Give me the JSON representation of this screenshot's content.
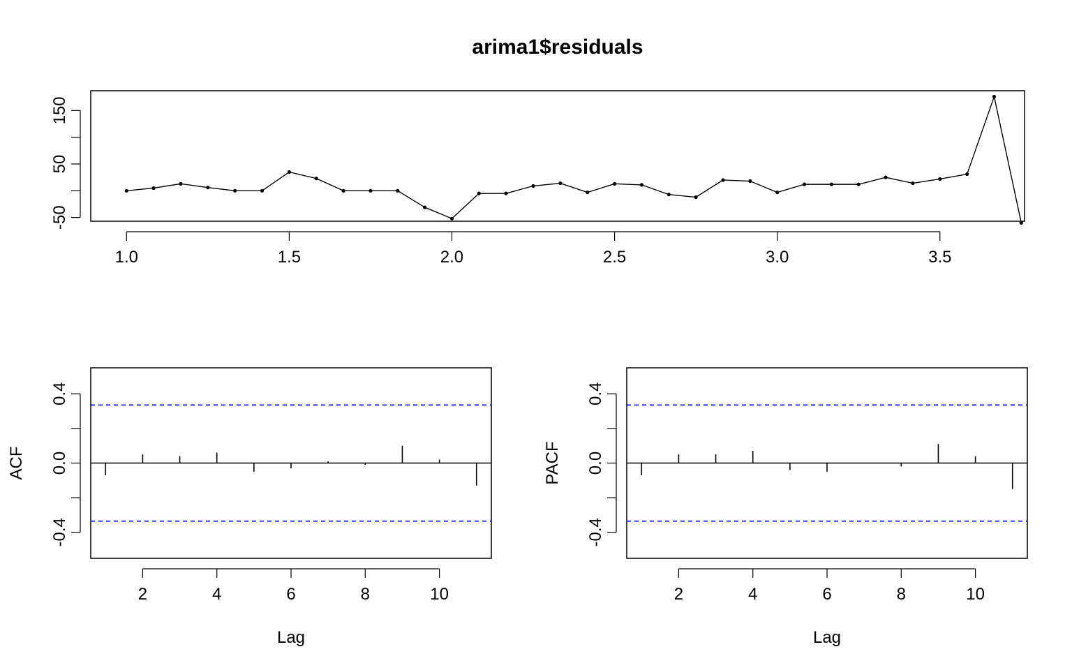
{
  "chart_data": [
    {
      "type": "line",
      "title": "arima1$residuals",
      "xlabel": "",
      "ylabel": "",
      "xlim": [
        0.89,
        3.76
      ],
      "ylim": [
        -57,
        187
      ],
      "x_ticks": [
        1.0,
        1.5,
        2.0,
        2.5,
        3.0,
        3.5
      ],
      "x_tick_labels": [
        "1.0",
        "1.5",
        "2.0",
        "2.5",
        "3.0",
        "3.5"
      ],
      "y_ticks": [
        -50,
        0,
        50,
        100,
        150
      ],
      "y_tick_labels": [
        "-50",
        "",
        "50",
        "",
        "150"
      ],
      "start": 1.0,
      "frequency": 12,
      "values": [
        0,
        5,
        13,
        6,
        0,
        0,
        35,
        23,
        0,
        0,
        0,
        -31,
        -52,
        -5,
        -5,
        9,
        14,
        -3,
        13,
        11,
        -7,
        -12,
        20,
        18,
        -3,
        12,
        12,
        12,
        25,
        14,
        22,
        31,
        176,
        -60
      ],
      "grid": false
    },
    {
      "type": "bar",
      "subtype": "acf",
      "title": "",
      "xlabel": "Lag",
      "ylabel": "ACF",
      "xlim": [
        0.6,
        11.4
      ],
      "ylim": [
        -0.55,
        0.55
      ],
      "lags": [
        1,
        2,
        3,
        4,
        5,
        6,
        7,
        8,
        9,
        10,
        11
      ],
      "values": [
        -0.07,
        0.05,
        0.04,
        0.06,
        -0.05,
        -0.03,
        0.01,
        -0.01,
        0.1,
        0.02,
        -0.13
      ],
      "conf_limit": 0.335,
      "x_ticks": [
        2,
        4,
        6,
        8,
        10
      ],
      "x_tick_labels": [
        "2",
        "4",
        "6",
        "8",
        "10"
      ],
      "y_ticks": [
        -0.4,
        -0.2,
        0.0,
        0.2,
        0.4
      ],
      "y_tick_labels": [
        "-0.4",
        "",
        "0.0",
        "",
        "0.4"
      ],
      "conf_color": "#0000ff"
    },
    {
      "type": "bar",
      "subtype": "pacf",
      "title": "",
      "xlabel": "Lag",
      "ylabel": "PACF",
      "xlim": [
        0.6,
        11.4
      ],
      "ylim": [
        -0.55,
        0.55
      ],
      "lags": [
        1,
        2,
        3,
        4,
        5,
        6,
        7,
        8,
        9,
        10,
        11
      ],
      "values": [
        -0.07,
        0.05,
        0.05,
        0.07,
        -0.04,
        -0.05,
        0.0,
        -0.02,
        0.11,
        0.04,
        -0.15
      ],
      "conf_limit": 0.335,
      "x_ticks": [
        2,
        4,
        6,
        8,
        10
      ],
      "x_tick_labels": [
        "2",
        "4",
        "6",
        "8",
        "10"
      ],
      "y_ticks": [
        -0.4,
        -0.2,
        0.0,
        0.2,
        0.4
      ],
      "y_tick_labels": [
        "-0.4",
        "",
        "0.0",
        "",
        "0.4"
      ],
      "conf_color": "#0000ff"
    }
  ]
}
